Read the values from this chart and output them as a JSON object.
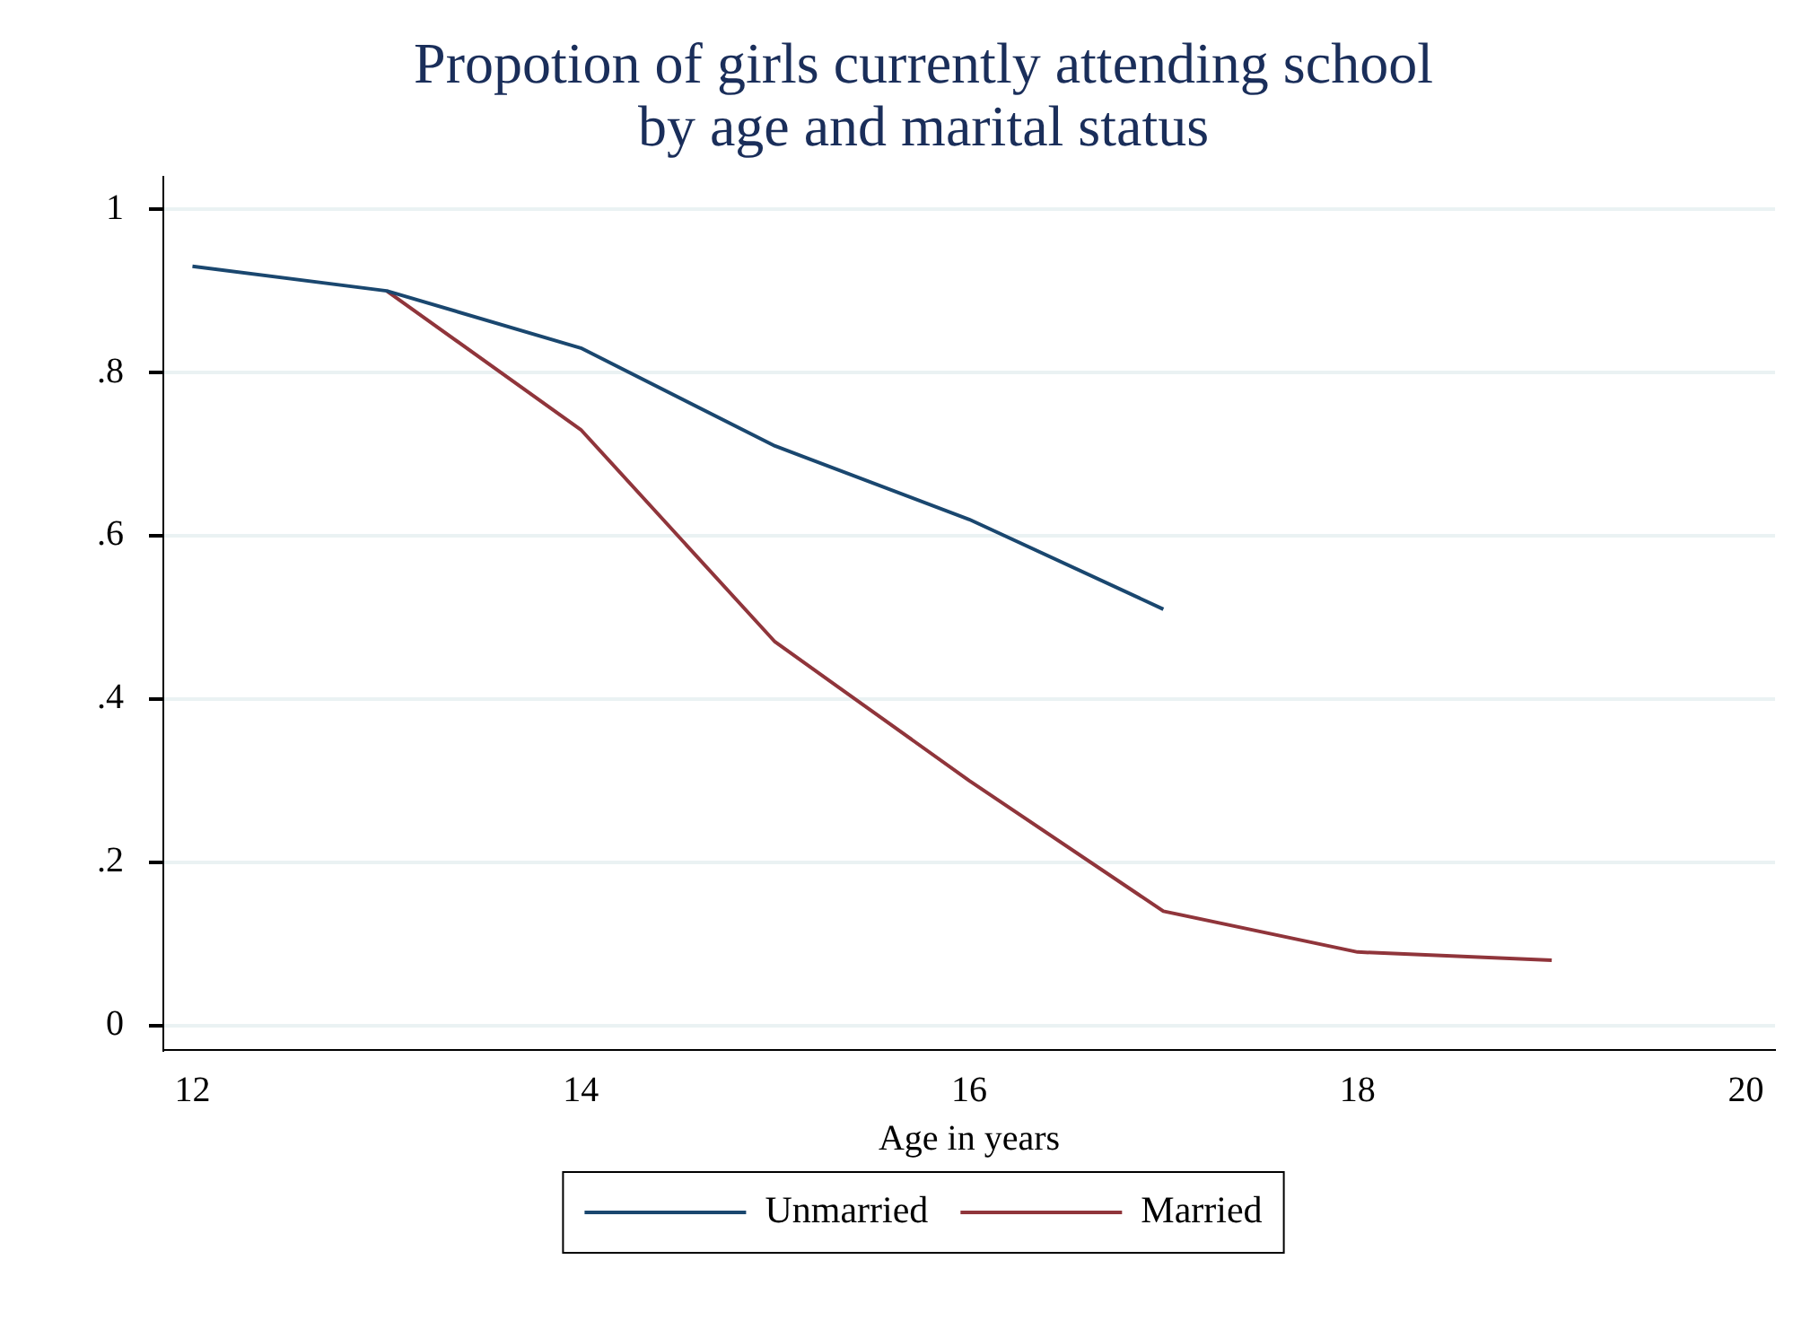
{
  "chart_data": {
    "type": "line",
    "title": "Propotion of girls currently attending school\nby age and marital status",
    "xlabel": "Age in years",
    "x": [
      12,
      13,
      14,
      15,
      16,
      17,
      18,
      19
    ],
    "series": [
      {
        "name": "Unmarried",
        "color": "#1a476f",
        "values": [
          0.93,
          0.9,
          0.83,
          0.71,
          0.62,
          0.51,
          null,
          null
        ]
      },
      {
        "name": "Married",
        "color": "#90353b",
        "values": [
          null,
          0.9,
          0.73,
          0.47,
          0.3,
          0.14,
          0.09,
          0.08
        ]
      }
    ],
    "xlim": [
      11.85,
      20.15
    ],
    "xticks": [
      12,
      14,
      16,
      18,
      20
    ],
    "ylim": [
      -0.03,
      1.04
    ],
    "yticks": [
      {
        "value": 0,
        "label": "0"
      },
      {
        "value": 0.2,
        "label": ".2"
      },
      {
        "value": 0.4,
        "label": ".4"
      },
      {
        "value": 0.6,
        "label": ".6"
      },
      {
        "value": 0.8,
        "label": ".8"
      },
      {
        "value": 1,
        "label": "1"
      }
    ],
    "grid": "y",
    "legend": "bottom",
    "marker": "none",
    "line_style": "solid"
  }
}
